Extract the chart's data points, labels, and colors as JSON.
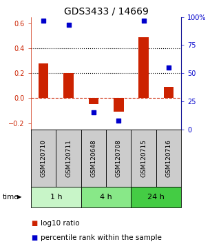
{
  "title": "GDS3433 / 14669",
  "samples": [
    "GSM120710",
    "GSM120711",
    "GSM120648",
    "GSM120708",
    "GSM120715",
    "GSM120716"
  ],
  "log10_ratio": [
    0.28,
    0.2,
    -0.05,
    -0.11,
    0.49,
    0.09
  ],
  "percentile_rank": [
    97,
    93,
    15,
    8,
    97,
    55
  ],
  "time_groups": [
    {
      "label": "1 h",
      "start": 0,
      "end": 2,
      "color": "#c8f5c8"
    },
    {
      "label": "4 h",
      "start": 2,
      "end": 4,
      "color": "#88e888"
    },
    {
      "label": "24 h",
      "start": 4,
      "end": 6,
      "color": "#44cc44"
    }
  ],
  "bar_color": "#cc2200",
  "dot_color": "#0000cc",
  "left_ylim": [
    -0.25,
    0.65
  ],
  "right_ylim": [
    0,
    100
  ],
  "left_yticks": [
    -0.2,
    0.0,
    0.2,
    0.4,
    0.6
  ],
  "right_yticks": [
    0,
    25,
    50,
    75,
    100
  ],
  "right_yticklabels": [
    "0",
    "25",
    "50",
    "75",
    "100%"
  ],
  "hlines": [
    0.2,
    0.4
  ],
  "zero_line": 0.0,
  "dot_size": 22,
  "bar_width": 0.4,
  "bg_color": "#ffffff",
  "sample_box_color": "#cccccc",
  "title_fontsize": 10,
  "tick_fontsize": 7,
  "label_fontsize": 6.5,
  "time_fontsize": 8,
  "legend_fontsize": 7.5
}
